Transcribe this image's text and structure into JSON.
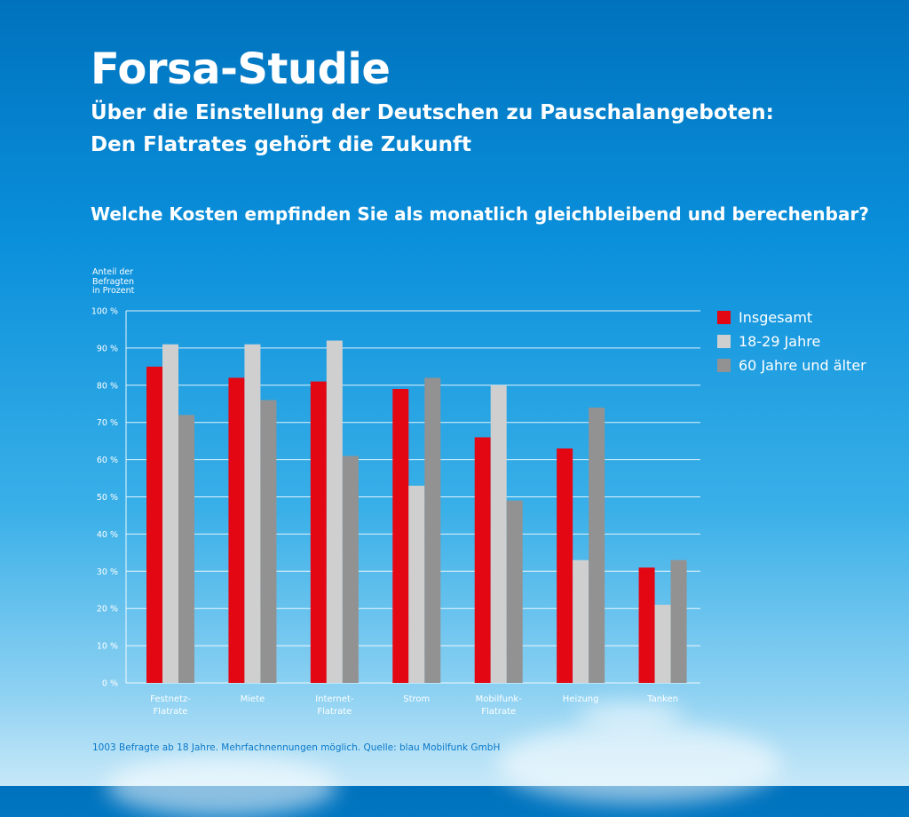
{
  "header": {
    "title": "Forsa-Studie",
    "subtitle_line1": "Über die Einstellung der Deutschen zu Pauschalangeboten:",
    "subtitle_line2": "Den Flatrates gehört die Zukunft",
    "question": "Welche Kosten empfinden Sie als monatlich gleichbleibend und berechenbar?"
  },
  "axis": {
    "ylabel_lines": [
      "Anteil der",
      "Befragten",
      "in Prozent"
    ]
  },
  "footer": {
    "source": "1003 Befragte ab 18 Jahre. Mehrfachnennungen möglich. Quelle: blau Mobilfunk GmbH"
  },
  "chart_data": {
    "type": "bar",
    "title": "Welche Kosten empfinden Sie als monatlich gleichbleibend und berechenbar?",
    "ylabel": "Anteil der Befragten in Prozent",
    "ylim": [
      0,
      100
    ],
    "yticks": [
      "0 %",
      "10 %",
      "20 %",
      "30 %",
      "40 %",
      "50 %",
      "60 %",
      "70 %",
      "80 %",
      "90 %",
      "100 %"
    ],
    "grid": true,
    "legend_position": "right",
    "categories": [
      [
        "Festnetz-",
        "Flatrate"
      ],
      [
        "Miete"
      ],
      [
        "Internet-",
        "Flatrate"
      ],
      [
        "Strom"
      ],
      [
        "Mobilfunk-",
        "Flatrate"
      ],
      [
        "Heizung"
      ],
      [
        "Tanken"
      ]
    ],
    "series": [
      {
        "name": "Insgesamt",
        "color": "#e30613",
        "values": [
          85,
          82,
          81,
          79,
          66,
          63,
          31
        ]
      },
      {
        "name": "18-29 Jahre",
        "color": "#cfcfcf",
        "values": [
          91,
          91,
          92,
          53,
          80,
          33,
          21
        ]
      },
      {
        "name": "60 Jahre und älter",
        "color": "#929292",
        "values": [
          72,
          76,
          61,
          82,
          49,
          74,
          33
        ]
      }
    ]
  }
}
